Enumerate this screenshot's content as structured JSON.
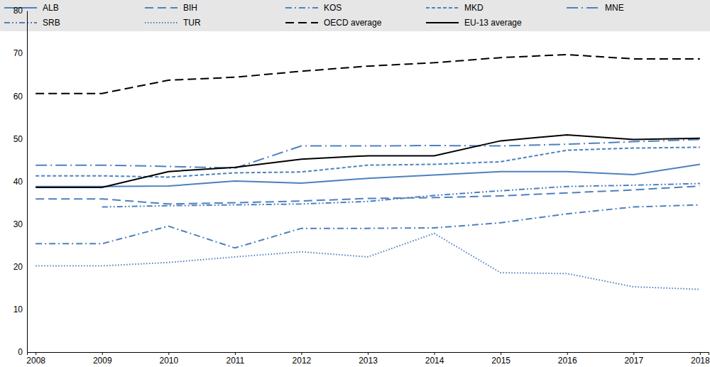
{
  "chart_data": {
    "type": "line",
    "categories": [
      "2008",
      "2009",
      "2010",
      "2011",
      "2012",
      "2013",
      "2014",
      "2015",
      "2016",
      "2017",
      "2018"
    ],
    "ylim": [
      0,
      80
    ],
    "yticks": [
      0,
      10,
      20,
      30,
      40,
      50,
      60,
      70,
      80
    ],
    "grid": false,
    "legend": "top",
    "series": [
      {
        "name": "ALB",
        "color": "#4f81bd",
        "line_style": "solid",
        "values": [
          38.8,
          38.8,
          38.9,
          40.1,
          39.6,
          40.7,
          41.5,
          42.3,
          42.3,
          41.6,
          44.0
        ]
      },
      {
        "name": "BIH",
        "color": "#4f81bd",
        "line_style": "long-dash",
        "values": [
          35.9,
          35.9,
          34.7,
          35.0,
          35.4,
          36.0,
          36.2,
          36.6,
          37.3,
          38.0,
          38.9
        ]
      },
      {
        "name": "KOS",
        "color": "#4f81bd",
        "line_style": "dash-dot",
        "values": [
          25.4,
          25.4,
          29.5,
          24.4,
          29.0,
          29.0,
          29.1,
          30.3,
          32.4,
          34.0,
          34.5
        ]
      },
      {
        "name": "MKD",
        "color": "#4f81bd",
        "line_style": "short-dash",
        "values": [
          41.3,
          41.3,
          41.0,
          42.0,
          42.2,
          43.8,
          44.0,
          44.6,
          47.3,
          47.8,
          48.0
        ]
      },
      {
        "name": "MNE",
        "color": "#4f81bd",
        "line_style": "long-dash-dot",
        "values": [
          43.8,
          43.8,
          43.5,
          43.1,
          48.3,
          48.3,
          48.4,
          48.3,
          48.7,
          49.3,
          49.8
        ]
      },
      {
        "name": "SRB",
        "color": "#4f81bd",
        "line_style": "dash-dot-dot",
        "values": [
          null,
          34.0,
          34.3,
          34.5,
          34.7,
          35.3,
          36.7,
          37.8,
          38.8,
          39.1,
          39.5
        ]
      },
      {
        "name": "TUR",
        "color": "#4f81bd",
        "line_style": "dotted",
        "values": [
          20.2,
          20.2,
          21.0,
          22.3,
          23.5,
          22.3,
          27.8,
          18.6,
          18.4,
          15.3,
          14.7
        ]
      },
      {
        "name": "OECD average",
        "color": "#000000",
        "line_style": "long-dash",
        "values": [
          60.6,
          60.6,
          63.7,
          64.4,
          65.8,
          67.0,
          67.8,
          69.0,
          69.7,
          68.7,
          68.7
        ]
      },
      {
        "name": "EU-13 average",
        "color": "#000000",
        "line_style": "solid",
        "values": [
          38.6,
          38.6,
          42.3,
          43.3,
          45.2,
          46.0,
          46.0,
          49.5,
          50.9,
          49.8,
          50.1
        ]
      }
    ]
  }
}
